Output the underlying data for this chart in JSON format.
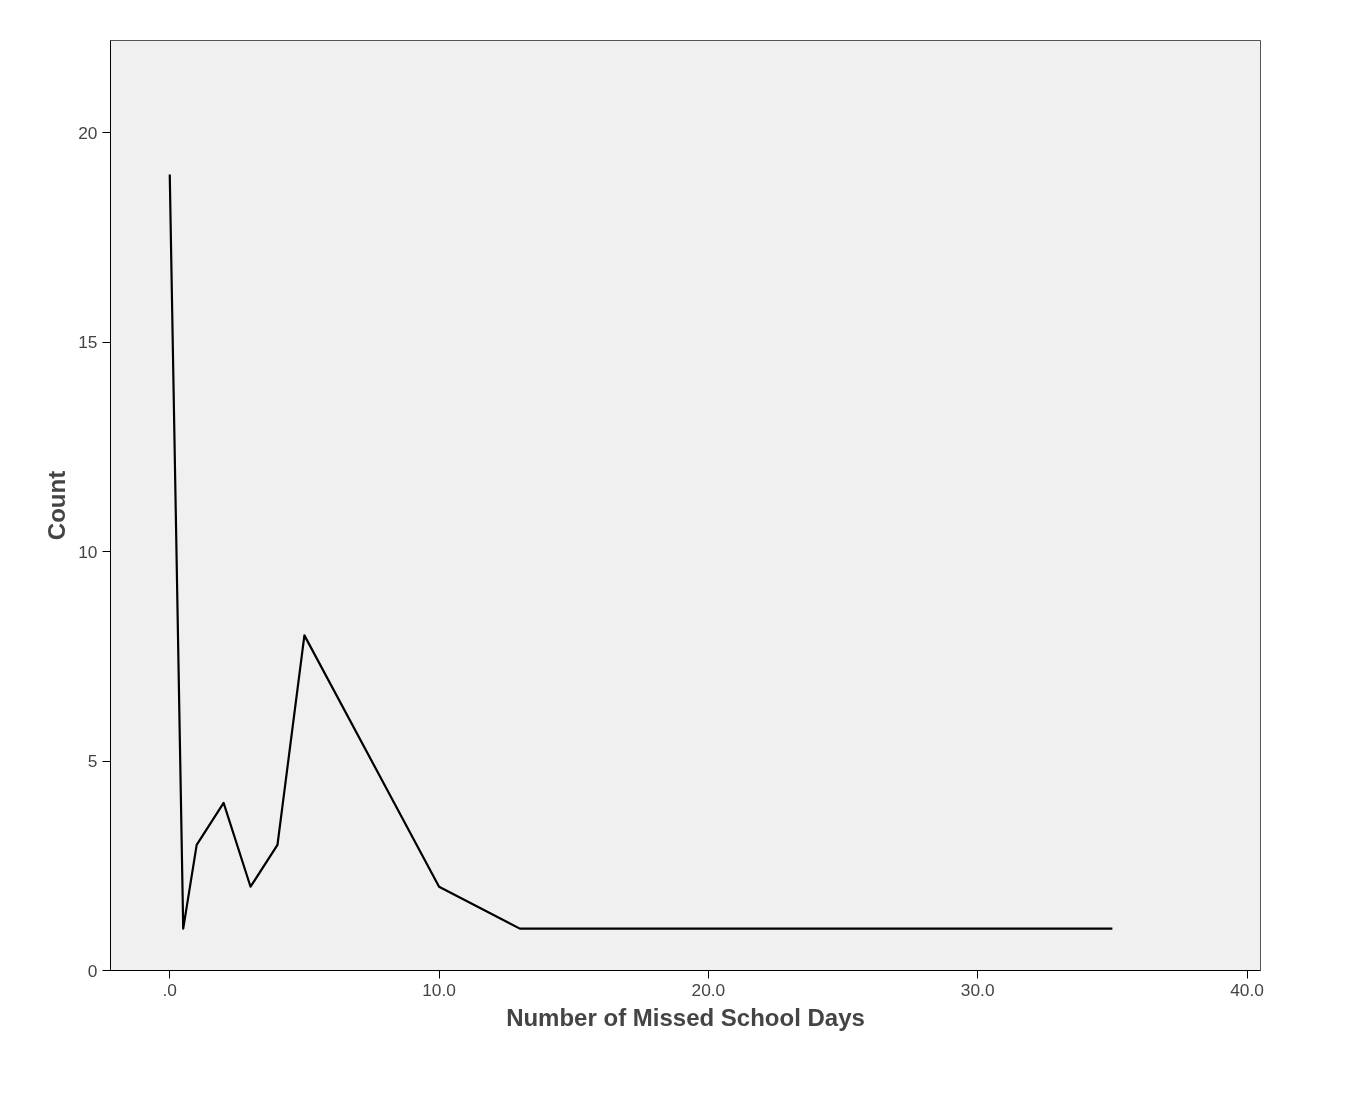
{
  "chart_data": {
    "type": "line",
    "xlabel": "Number of Missed School Days",
    "ylabel": "Count",
    "x": [
      0,
      0.5,
      1,
      2,
      3,
      4,
      5,
      10,
      13,
      35
    ],
    "series": [
      {
        "color": "#000000",
        "values": [
          19,
          1,
          3,
          4,
          2,
          3,
          8,
          2,
          1,
          1
        ]
      }
    ],
    "xlim": [
      -2.2,
      40.5
    ],
    "ylim": [
      0,
      22.2
    ],
    "xticks": [
      {
        "value": 0,
        "label": ".0"
      },
      {
        "value": 10,
        "label": "10.0"
      },
      {
        "value": 20,
        "label": "20.0"
      },
      {
        "value": 30,
        "label": "30.0"
      },
      {
        "value": 40,
        "label": "40.0"
      }
    ],
    "yticks": [
      0,
      5,
      10,
      15,
      20
    ],
    "grid": false,
    "marker": "none",
    "line_style": "solid"
  }
}
